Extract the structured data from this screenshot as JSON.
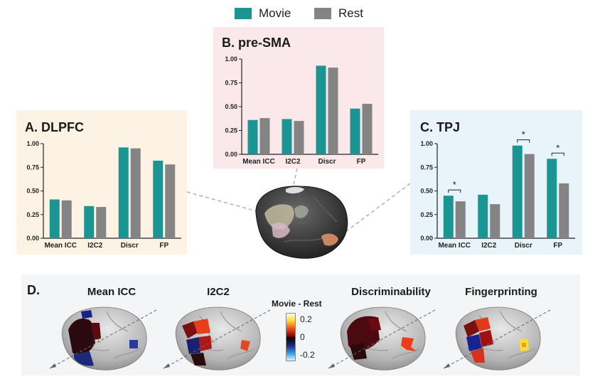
{
  "legend": {
    "items": [
      {
        "label": "Movie",
        "color": "#1a9591"
      },
      {
        "label": "Rest",
        "color": "#848484"
      }
    ]
  },
  "panels": {
    "a": {
      "title": "A. DLPFC"
    },
    "b": {
      "title": "B. pre-SMA"
    },
    "c": {
      "title": "C. TPJ"
    }
  },
  "chart_data": [
    {
      "type": "bar",
      "title": "A. DLPFC",
      "categories": [
        "Mean ICC",
        "I2C2",
        "Discr",
        "FP"
      ],
      "series": [
        {
          "name": "Movie",
          "values": [
            0.41,
            0.34,
            0.96,
            0.82
          ]
        },
        {
          "name": "Rest",
          "values": [
            0.4,
            0.33,
            0.95,
            0.78
          ]
        }
      ],
      "ylim": [
        0,
        1
      ],
      "yticks": [
        "0.00",
        "0.25",
        "0.50",
        "0.75",
        "1.00"
      ],
      "significance": []
    },
    {
      "type": "bar",
      "title": "B. pre-SMA",
      "categories": [
        "Mean ICC",
        "I2C2",
        "Discr",
        "FP"
      ],
      "series": [
        {
          "name": "Movie",
          "values": [
            0.36,
            0.37,
            0.93,
            0.48
          ]
        },
        {
          "name": "Rest",
          "values": [
            0.38,
            0.35,
            0.91,
            0.53
          ]
        }
      ],
      "ylim": [
        0,
        1
      ],
      "yticks": [
        "0.00",
        "0.25",
        "0.50",
        "0.75",
        "1.00"
      ],
      "significance": []
    },
    {
      "type": "bar",
      "title": "C. TPJ",
      "categories": [
        "Mean ICC",
        "I2C2",
        "Discr",
        "FP"
      ],
      "series": [
        {
          "name": "Movie",
          "values": [
            0.45,
            0.46,
            0.98,
            0.84
          ]
        },
        {
          "name": "Rest",
          "values": [
            0.39,
            0.36,
            0.89,
            0.58
          ]
        }
      ],
      "ylim": [
        0,
        1
      ],
      "yticks": [
        "0.00",
        "0.25",
        "0.50",
        "0.75",
        "1.00"
      ],
      "significance": [
        {
          "category": "Mean ICC",
          "label": "*"
        },
        {
          "category": "Discr",
          "label": "*"
        },
        {
          "category": "FP",
          "label": "*"
        }
      ]
    }
  ],
  "panel_d": {
    "label": "D.",
    "maps": [
      {
        "title": "Mean ICC"
      },
      {
        "title": "I2C2"
      },
      {
        "title": "Discriminability"
      },
      {
        "title": "Fingerprinting"
      }
    ],
    "colorbar": {
      "title": "Movie - Rest",
      "ticks": [
        "0.2",
        "0",
        "-0.2"
      ]
    }
  }
}
